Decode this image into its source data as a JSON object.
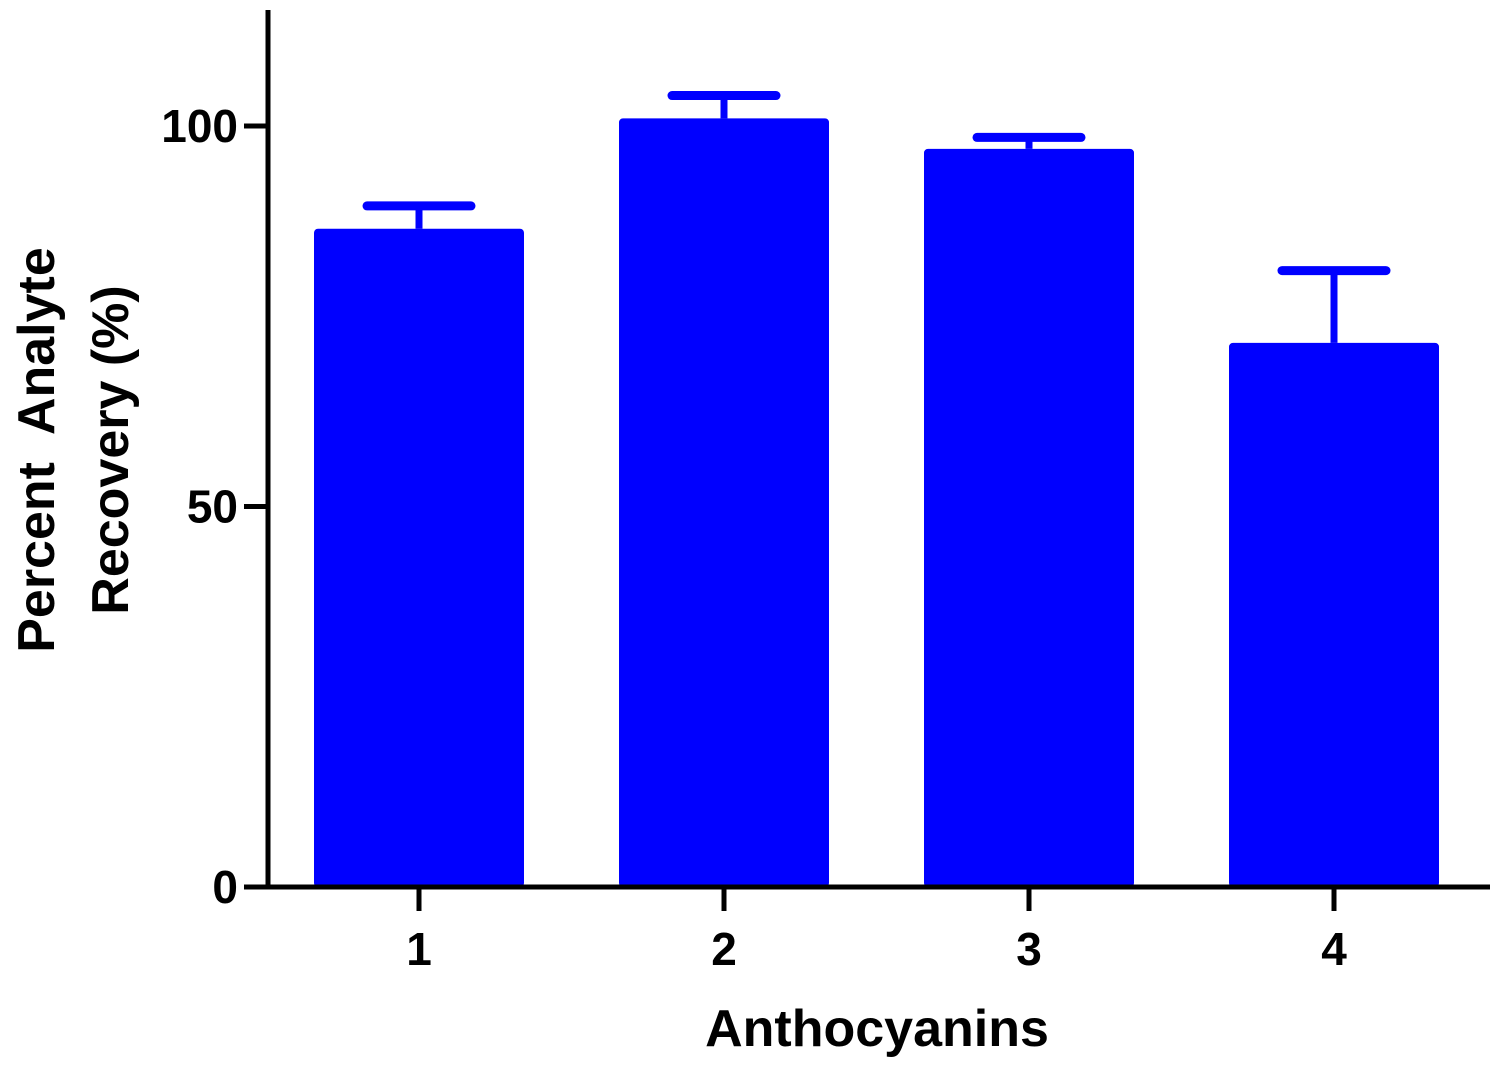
{
  "chart_data": {
    "type": "bar",
    "title": "",
    "xlabel": "Anthocyanins",
    "ylabel_lines": [
      "Percent  Analyte",
      "Recovery (%)"
    ],
    "categories": [
      "1",
      "2",
      "3",
      "4"
    ],
    "values": [
      86.5,
      101,
      97,
      71.5
    ],
    "error_upper": [
      89.5,
      104,
      98.5,
      81
    ],
    "ylim": [
      0,
      115
    ],
    "yticks": [
      0,
      50,
      100
    ],
    "ytick_labels": [
      "0",
      "50",
      "100"
    ],
    "bar_color": "#0000FF",
    "axis_color": "#000000",
    "grid": false,
    "legend": "none"
  }
}
